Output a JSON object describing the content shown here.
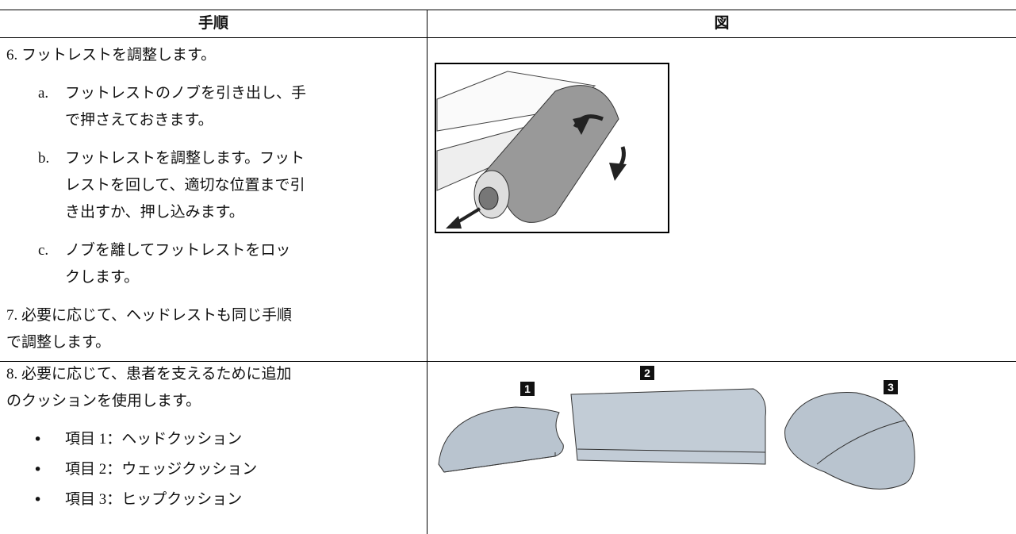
{
  "table": {
    "header": [
      "手順",
      "図"
    ],
    "rows": [
      {
        "items": [
          {
            "lines": [
              "6. フットレストを調整します。"
            ]
          },
          {
            "marker": "a.",
            "lines": [
              "フットレストのノブを引き出し、手",
              "で押さえておきます。"
            ]
          },
          {
            "marker": "b.",
            "lines": [
              "フットレストを調整します。フット",
              "レストを回して、適切な位置まで引",
              "き出すか、押し込みます。"
            ]
          },
          {
            "marker": "c.",
            "lines": [
              "ノブを離してフットレストをロッ",
              "クします。"
            ]
          },
          {
            "lines": [
              "7. 必要に応じて、ヘッドレストも同じ手順",
              "で調整します。"
            ]
          }
        ]
      },
      {
        "items": [
          {
            "lines": [
              "8. 必要に応じて、患者を支えるために追加",
              "のクッションを使用します。"
            ]
          },
          {
            "bullet": true,
            "lines": [
              "項目 1：ヘッドクッション"
            ]
          },
          {
            "bullet": true,
            "lines": [
              "項目 2：ウェッジクッション"
            ]
          },
          {
            "bullet": true,
            "lines": [
              "項目 3：ヒップクッション"
            ]
          }
        ],
        "figure_labels": [
          "1",
          "2",
          "3"
        ]
      }
    ]
  }
}
